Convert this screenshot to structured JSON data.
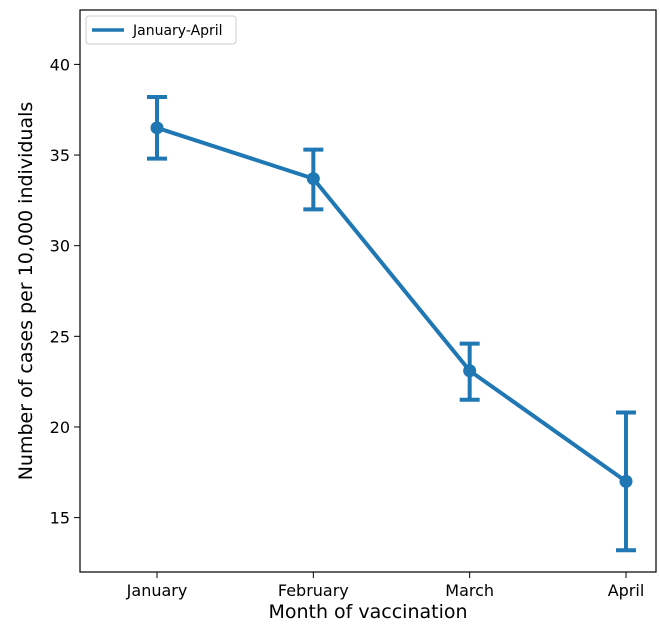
{
  "chart_data": {
    "type": "line",
    "title": "",
    "xlabel": "Month of vaccination",
    "ylabel": "Number of cases per 10,000 individuals",
    "categories": [
      "January",
      "February",
      "March",
      "April"
    ],
    "ylim": [
      12,
      43
    ],
    "yticks": [
      15,
      20,
      25,
      30,
      35,
      40
    ],
    "grid": false,
    "legend_position": "top-left",
    "series": [
      {
        "name": "January-April",
        "color": "#1f77b4",
        "values": [
          36.5,
          33.7,
          23.1,
          17.0
        ],
        "error_low": [
          34.8,
          32.0,
          21.5,
          13.2
        ],
        "error_high": [
          38.2,
          35.3,
          24.6,
          20.8
        ]
      }
    ]
  }
}
